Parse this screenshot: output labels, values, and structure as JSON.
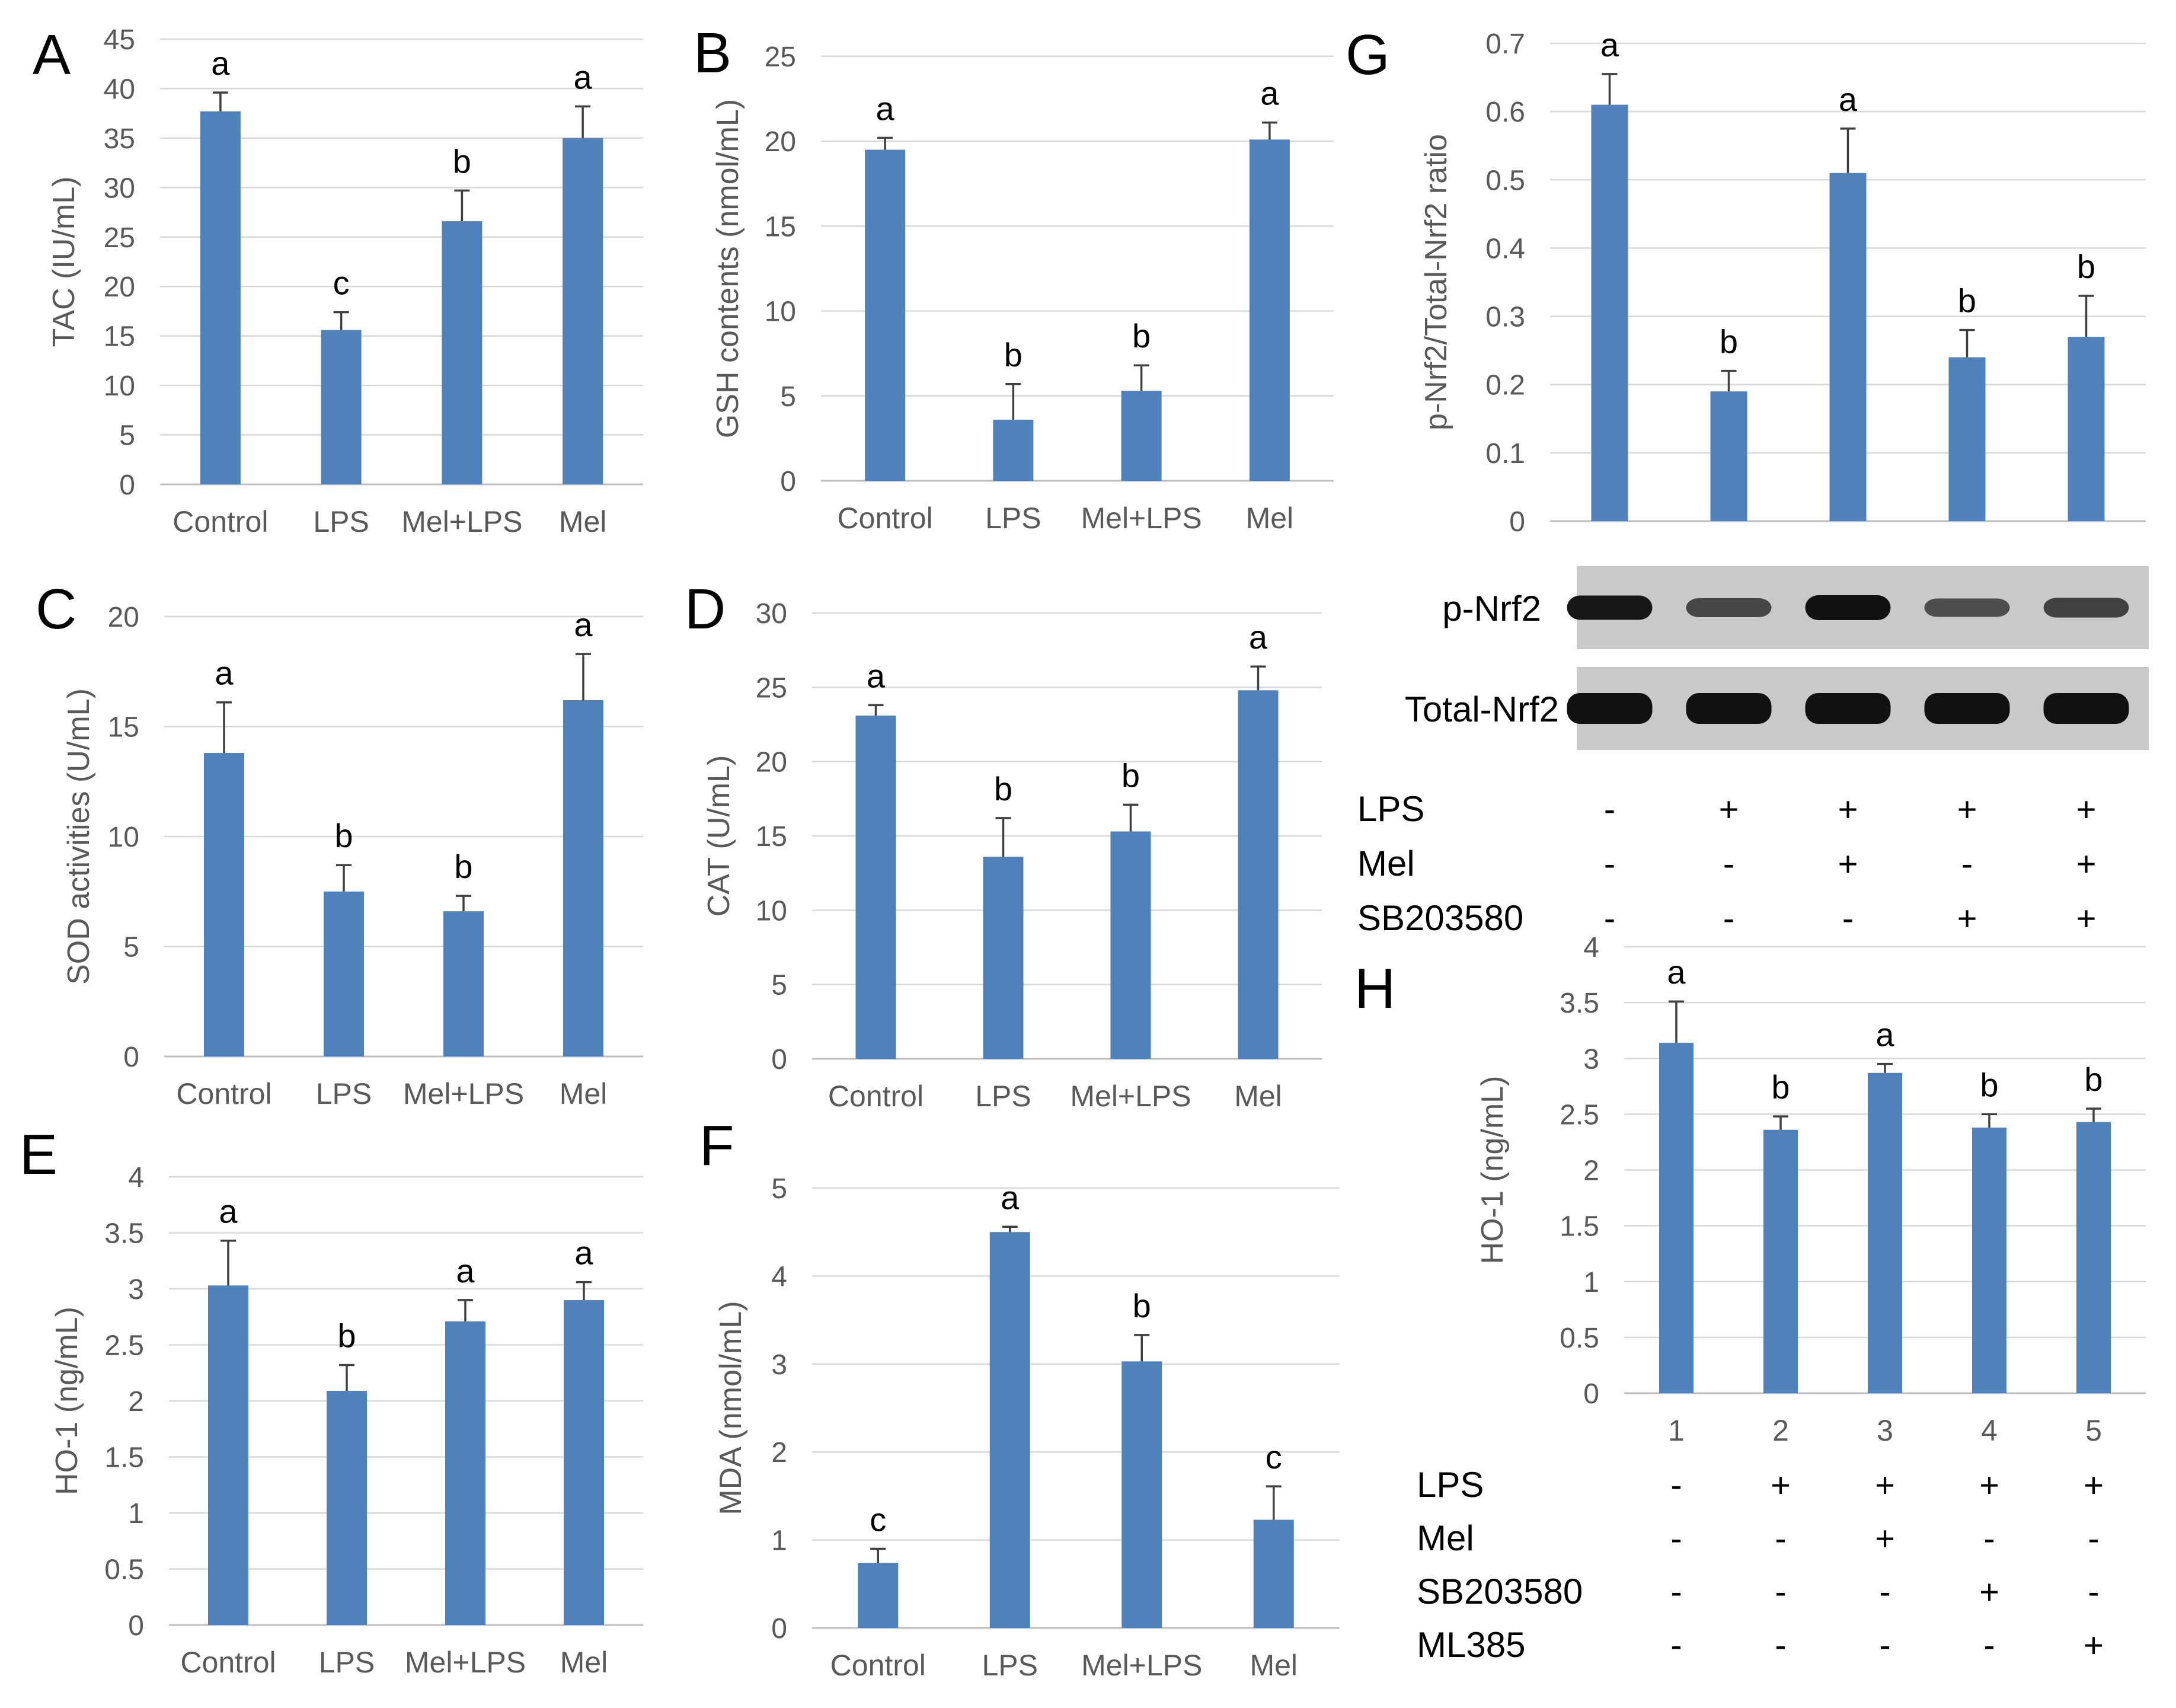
{
  "colors": {
    "bar": "#4f81bd",
    "grid": "#d9d9d9",
    "axis_text": "#595959",
    "blot_bg": "#c9c9c9",
    "band": "#111111"
  },
  "chart_data": [
    {
      "id": "A",
      "type": "bar",
      "label": "A",
      "ylabel": "TAC (IU/mL)",
      "categories": [
        "Control",
        "LPS",
        "Mel+LPS",
        "Mel"
      ],
      "values": [
        37.7,
        15.6,
        26.6,
        35.0
      ],
      "errors": [
        1.9,
        1.8,
        3.1,
        3.2
      ],
      "significance": [
        "a",
        "c",
        "b",
        "a"
      ],
      "ylim": [
        0,
        45
      ],
      "yticks": [
        0,
        5,
        10,
        15,
        20,
        25,
        30,
        35,
        40,
        45
      ]
    },
    {
      "id": "B",
      "type": "bar",
      "label": "B",
      "ylabel": "GSH contents (nmol/mL)",
      "categories": [
        "Control",
        "LPS",
        "Mel+LPS",
        "Mel"
      ],
      "values": [
        19.5,
        3.6,
        5.3,
        20.1
      ],
      "errors": [
        0.7,
        2.1,
        1.5,
        1.0
      ],
      "significance": [
        "a",
        "b",
        "b",
        "a"
      ],
      "ylim": [
        0,
        25
      ],
      "yticks": [
        0,
        5,
        10,
        15,
        20,
        25
      ]
    },
    {
      "id": "C",
      "type": "bar",
      "label": "C",
      "ylabel": "SOD activities (U/mL)",
      "categories": [
        "Control",
        "LPS",
        "Mel+LPS",
        "Mel"
      ],
      "values": [
        13.8,
        7.5,
        6.6,
        16.2
      ],
      "errors": [
        2.3,
        1.2,
        0.7,
        2.1
      ],
      "significance": [
        "a",
        "b",
        "b",
        "a"
      ],
      "ylim": [
        0,
        20
      ],
      "yticks": [
        0,
        5,
        10,
        15,
        20
      ]
    },
    {
      "id": "D",
      "type": "bar",
      "label": "D",
      "ylabel": "CAT (U/mL)",
      "categories": [
        "Control",
        "LPS",
        "Mel+LPS",
        "Mel"
      ],
      "values": [
        23.1,
        13.6,
        15.3,
        24.8
      ],
      "errors": [
        0.7,
        2.6,
        1.8,
        1.6
      ],
      "significance": [
        "a",
        "b",
        "b",
        "a"
      ],
      "ylim": [
        0,
        30
      ],
      "yticks": [
        0,
        5,
        10,
        15,
        20,
        25,
        30
      ]
    },
    {
      "id": "E",
      "type": "bar",
      "label": "E",
      "ylabel": "HO-1 (ng/mL)",
      "categories": [
        "Control",
        "LPS",
        "Mel+LPS",
        "Mel"
      ],
      "values": [
        3.03,
        2.09,
        2.71,
        2.9
      ],
      "errors": [
        0.4,
        0.23,
        0.19,
        0.16
      ],
      "significance": [
        "a",
        "b",
        "a",
        "a"
      ],
      "ylim": [
        0,
        4
      ],
      "yticks": [
        0,
        0.5,
        1,
        1.5,
        2,
        2.5,
        3,
        3.5,
        4
      ]
    },
    {
      "id": "F",
      "type": "bar",
      "label": "F",
      "ylabel": "MDA (nmol/mL)",
      "categories": [
        "Control",
        "LPS",
        "Mel+LPS",
        "Mel"
      ],
      "values": [
        0.74,
        4.5,
        3.03,
        1.23
      ],
      "errors": [
        0.16,
        0.06,
        0.3,
        0.38
      ],
      "significance": [
        "c",
        "a",
        "b",
        "c"
      ],
      "ylim": [
        0,
        5
      ],
      "yticks": [
        0,
        1,
        2,
        3,
        4,
        5
      ]
    },
    {
      "id": "G",
      "type": "bar",
      "label": "G",
      "ylabel": "p-Nrf2/Total-Nrf2 ratio",
      "categories": [
        "",
        "",
        "",
        "",
        ""
      ],
      "values": [
        0.61,
        0.19,
        0.51,
        0.24,
        0.27
      ],
      "errors": [
        0.045,
        0.03,
        0.065,
        0.04,
        0.06
      ],
      "significance": [
        "a",
        "b",
        "a",
        "b",
        "b"
      ],
      "ylim": [
        0,
        0.7
      ],
      "yticks": [
        0,
        0.1,
        0.2,
        0.3,
        0.4,
        0.5,
        0.6,
        0.7
      ]
    },
    {
      "id": "H",
      "type": "bar",
      "label": "H",
      "ylabel": "HO-1 (ng/mL)",
      "categories": [
        "1",
        "2",
        "3",
        "4",
        "5"
      ],
      "values": [
        3.14,
        2.36,
        2.87,
        2.38,
        2.43
      ],
      "errors": [
        0.37,
        0.12,
        0.08,
        0.12,
        0.12
      ],
      "significance": [
        "a",
        "b",
        "a",
        "b",
        "b"
      ],
      "ylim": [
        0,
        4
      ],
      "yticks": [
        0,
        0.5,
        1,
        1.5,
        2,
        2.5,
        3,
        3.5,
        4
      ]
    }
  ],
  "blot": {
    "rows": [
      {
        "label": "p-Nrf2",
        "intensities": [
          0.95,
          0.55,
          1.0,
          0.5,
          0.6
        ]
      },
      {
        "label": "Total-Nrf2",
        "intensities": [
          1.0,
          1.0,
          1.0,
          1.0,
          1.0
        ]
      }
    ]
  },
  "treatment_table_G": [
    {
      "label": "LPS",
      "signs": [
        "-",
        "+",
        "+",
        "+",
        "+"
      ]
    },
    {
      "label": "Mel",
      "signs": [
        "-",
        "-",
        "+",
        "-",
        "+"
      ]
    },
    {
      "label": "SB203580",
      "signs": [
        "-",
        "-",
        "-",
        "+",
        "+"
      ]
    }
  ],
  "treatment_table_H": [
    {
      "label": "LPS",
      "signs": [
        "-",
        "+",
        "+",
        "+",
        "+"
      ]
    },
    {
      "label": "Mel",
      "signs": [
        "-",
        "-",
        "+",
        "-",
        "-"
      ]
    },
    {
      "label": "SB203580",
      "signs": [
        "-",
        "-",
        "-",
        "+",
        "-"
      ]
    },
    {
      "label": "ML385",
      "signs": [
        "-",
        "-",
        "-",
        "-",
        "+"
      ]
    }
  ]
}
